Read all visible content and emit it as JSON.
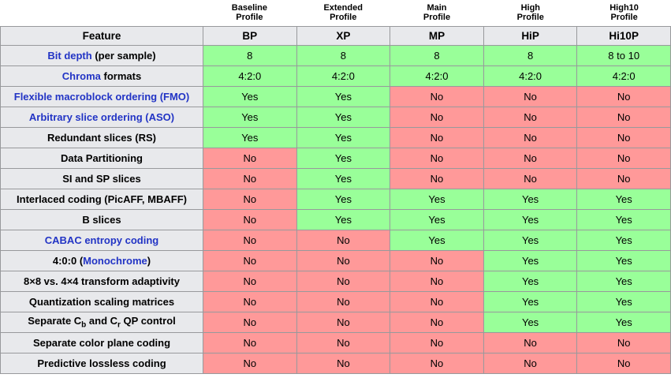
{
  "feature_header": "Feature",
  "profiles": [
    {
      "name_line1": "Baseline",
      "name_line2": "Profile",
      "abbr": "BP"
    },
    {
      "name_line1": "Extended",
      "name_line2": "Profile",
      "abbr": "XP"
    },
    {
      "name_line1": "Main",
      "name_line2": "Profile",
      "abbr": "MP"
    },
    {
      "name_line1": "High",
      "name_line2": "Profile",
      "abbr": "HiP"
    },
    {
      "name_line1": "High10",
      "name_line2": "Profile",
      "abbr": "Hi10P"
    }
  ],
  "rows": [
    {
      "feature": [
        {
          "text": "Bit depth",
          "link": true
        },
        {
          "text": " (per sample)"
        }
      ],
      "values": [
        "8",
        "8",
        "8",
        "8",
        "8 to 10"
      ]
    },
    {
      "feature": [
        {
          "text": "Chroma",
          "link": true
        },
        {
          "text": " formats"
        }
      ],
      "values": [
        "4:2:0",
        "4:2:0",
        "4:2:0",
        "4:2:0",
        "4:2:0"
      ]
    },
    {
      "feature": [
        {
          "text": "Flexible macroblock ordering (FMO)",
          "link": true
        }
      ],
      "values": [
        "Yes",
        "Yes",
        "No",
        "No",
        "No"
      ]
    },
    {
      "feature": [
        {
          "text": "Arbitrary slice ordering (ASO)",
          "link": true
        }
      ],
      "values": [
        "Yes",
        "Yes",
        "No",
        "No",
        "No"
      ]
    },
    {
      "feature": [
        {
          "text": "Redundant slices (RS)"
        }
      ],
      "values": [
        "Yes",
        "Yes",
        "No",
        "No",
        "No"
      ]
    },
    {
      "feature": [
        {
          "text": "Data Partitioning"
        }
      ],
      "values": [
        "No",
        "Yes",
        "No",
        "No",
        "No"
      ]
    },
    {
      "feature": [
        {
          "text": "SI and SP slices"
        }
      ],
      "values": [
        "No",
        "Yes",
        "No",
        "No",
        "No"
      ]
    },
    {
      "feature": [
        {
          "text": "Interlaced coding (PicAFF, MBAFF)"
        }
      ],
      "values": [
        "No",
        "Yes",
        "Yes",
        "Yes",
        "Yes"
      ]
    },
    {
      "feature": [
        {
          "text": "B slices"
        }
      ],
      "values": [
        "No",
        "Yes",
        "Yes",
        "Yes",
        "Yes"
      ]
    },
    {
      "feature": [
        {
          "text": "CABAC entropy coding",
          "link": true
        }
      ],
      "values": [
        "No",
        "No",
        "Yes",
        "Yes",
        "Yes"
      ]
    },
    {
      "feature": [
        {
          "text": "4:0:0 ("
        },
        {
          "text": "Monochrome",
          "link": true
        },
        {
          "text": ")"
        }
      ],
      "values": [
        "No",
        "No",
        "No",
        "Yes",
        "Yes"
      ]
    },
    {
      "feature": [
        {
          "text": "8×8 vs. 4×4 transform adaptivity"
        }
      ],
      "values": [
        "No",
        "No",
        "No",
        "Yes",
        "Yes"
      ]
    },
    {
      "feature": [
        {
          "text": "Quantization scaling matrices"
        }
      ],
      "values": [
        "No",
        "No",
        "No",
        "Yes",
        "Yes"
      ]
    },
    {
      "feature": [
        {
          "text": "Separate C"
        },
        {
          "text": "b",
          "sub": true
        },
        {
          "text": " and C"
        },
        {
          "text": "r",
          "sub": true
        },
        {
          "text": " QP control"
        }
      ],
      "values": [
        "No",
        "No",
        "No",
        "Yes",
        "Yes"
      ]
    },
    {
      "feature": [
        {
          "text": "Separate color plane coding"
        }
      ],
      "values": [
        "No",
        "No",
        "No",
        "No",
        "No"
      ]
    },
    {
      "feature": [
        {
          "text": "Predictive lossless coding"
        }
      ],
      "values": [
        "No",
        "No",
        "No",
        "No",
        "No"
      ]
    }
  ],
  "colors": {
    "supported_bg": "#99ff99",
    "unsupported_bg": "#ff9999",
    "header_bg": "#e8e9ec",
    "border": "#98999c",
    "link_text": "#2234c5",
    "body_text": "#000000"
  }
}
